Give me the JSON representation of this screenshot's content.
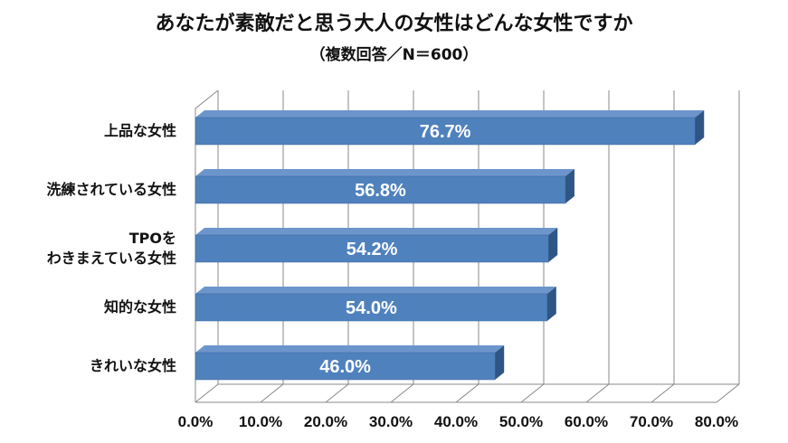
{
  "chart_data": {
    "type": "bar",
    "orientation": "horizontal",
    "title": "あなたが素敵だと思う大人の女性はどんな女性ですか",
    "subtitle": "（複数回答／N＝600）",
    "categories": [
      "上品な女性",
      "洗練されている女性",
      "TPOを\nわきまえている女性",
      "知的な女性",
      "きれいな女性"
    ],
    "values": [
      76.7,
      56.8,
      54.2,
      54.0,
      46.0
    ],
    "value_labels": [
      "76.7%",
      "56.8%",
      "54.2%",
      "54.0%",
      "46.0%"
    ],
    "xlim": [
      0,
      80
    ],
    "ticks": [
      "0.0%",
      "10.0%",
      "20.0%",
      "30.0%",
      "40.0%",
      "50.0%",
      "60.0%",
      "70.0%",
      "80.0%"
    ],
    "grid": true,
    "colors": {
      "bar_front": "#4F81BD",
      "bar_top": "#6C95CB",
      "bar_side": "#2F5585",
      "grid": "#888888"
    }
  }
}
